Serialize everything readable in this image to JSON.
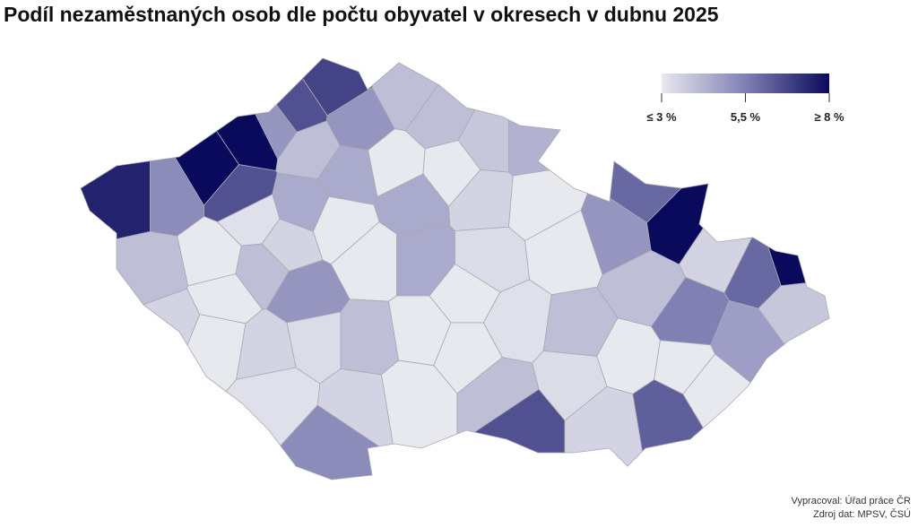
{
  "chart_data": {
    "type": "choropleth",
    "title": "Podíl nezaměstnaných osob dle počtu obyvatel v okresech v dubnu 2025",
    "values": [
      7.5,
      5.2,
      8.0,
      8.5,
      5.0,
      6.5,
      6.8,
      6.5,
      4.0,
      5.0,
      4.0,
      4.0,
      3.8,
      4.3,
      2.8,
      2.8,
      4.5,
      4.5,
      3.2,
      3.0,
      4.0,
      3.5,
      3.0,
      3.0,
      4.0,
      5.0,
      3.5,
      3.0,
      2.8,
      4.5,
      4.5,
      3.5,
      2.5,
      3.3,
      3.0,
      3.0,
      2.8,
      4.0,
      3.3,
      3.5,
      3.2,
      5.2,
      3.5,
      3.0,
      3.0,
      3.2,
      4.0,
      6.5,
      3.3,
      4.0,
      5.0,
      6.0,
      8.5,
      3.5,
      6.0,
      8.5,
      3.8,
      4.8,
      5.5,
      4.0,
      3.0,
      3.0,
      2.5,
      6.2,
      3.5
    ],
    "color_low": "#e8e8ef",
    "color_mid": "#8080b4",
    "color_high": "#0a0a5c",
    "legend": {
      "min": 3,
      "max": 8,
      "ticks": [
        {
          "value": 3,
          "label": "≤ 3 %"
        },
        {
          "value": 5.5,
          "label": "5,5 %"
        },
        {
          "value": 8,
          "label": "≥ 8 %"
        }
      ]
    },
    "source_lines": [
      "Vypracoval: Úřad práce ČR",
      "Zdroj dat: MPSV, ČSÚ"
    ]
  }
}
